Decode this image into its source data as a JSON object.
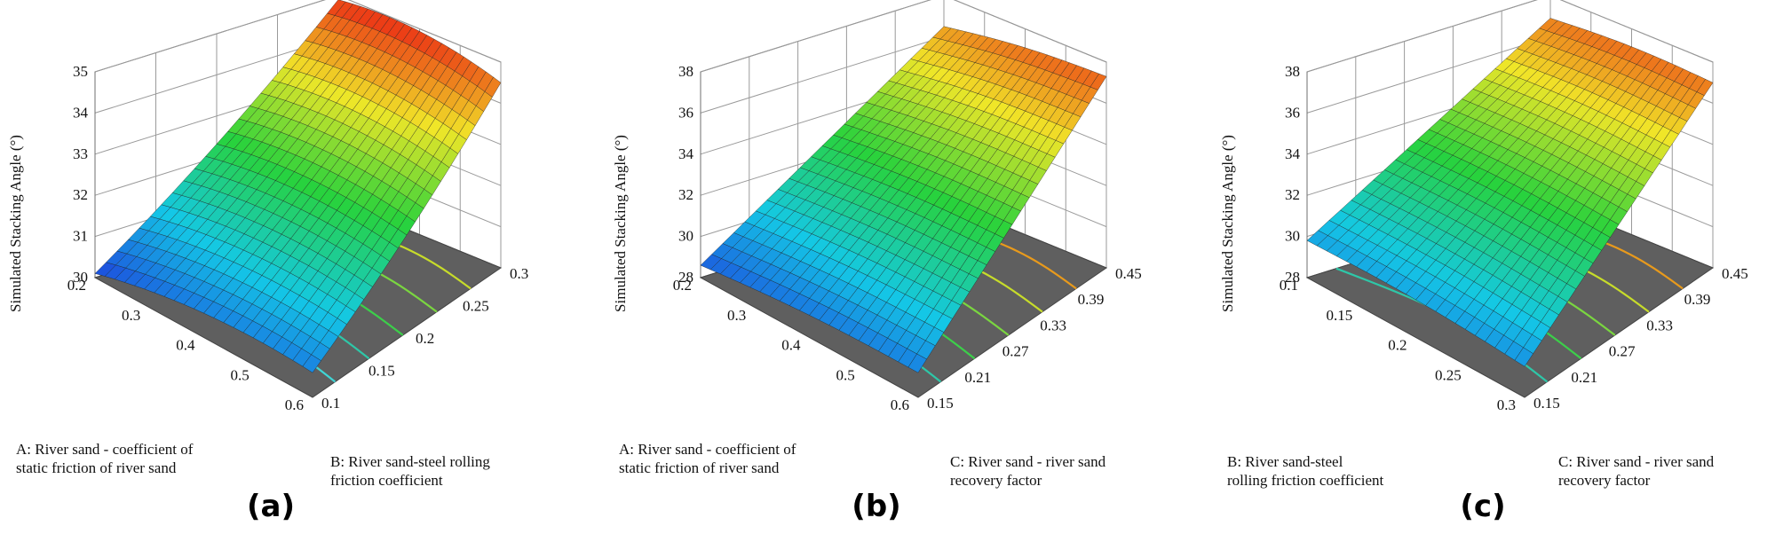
{
  "chart_data": [
    {
      "panel_label": "(a)",
      "type": "surface3d",
      "zlabel": "Simulated Stacking Angle (°)",
      "zticks": [
        "30",
        "31",
        "32",
        "33",
        "34",
        "35"
      ],
      "zlim": [
        30,
        35
      ],
      "x_axis": {
        "label": "A: River sand - coefficient of static friction of river sand",
        "label_lines": [
          "A: River sand - coefficient of",
          "static friction of river sand"
        ],
        "ticks": [
          "0.2",
          "0.3",
          "0.4",
          "0.5",
          "0.6"
        ],
        "range": [
          0.2,
          0.6
        ]
      },
      "y_axis": {
        "label": "B: River sand-steel rolling friction coefficient",
        "label_lines": [
          "B: River sand-steel rolling",
          "friction coefficient"
        ],
        "ticks": [
          "0.1",
          "0.15",
          "0.2",
          "0.25",
          "0.3"
        ],
        "range": [
          0.1,
          0.3
        ]
      },
      "surface_corners": {
        "x_min_y_min": 30.1,
        "x_min_y_max": 34.9,
        "x_max_y_min": 30.6,
        "x_max_y_max": 34.5
      },
      "colormap": "blue-cyan-green-yellow-red (z-scaled)",
      "floor_color": "#5f5f5f"
    },
    {
      "panel_label": "(b)",
      "type": "surface3d",
      "zlabel": "Simulated Stacking Angle (°)",
      "zticks": [
        "28",
        "30",
        "32",
        "34",
        "36",
        "38"
      ],
      "zlim": [
        28,
        38
      ],
      "x_axis": {
        "label": "A: River sand - coefficient of static friction of river sand",
        "label_lines": [
          "A: River sand - coefficient of",
          "static friction of river sand"
        ],
        "ticks": [
          "0.2",
          "0.3",
          "0.4",
          "0.5",
          "0.6"
        ],
        "range": [
          0.2,
          0.6
        ]
      },
      "y_axis": {
        "label": "C: River sand - river sand recovery factor",
        "label_lines": [
          "C: River sand - river sand",
          "recovery factor"
        ],
        "ticks": [
          "0.15",
          "0.21",
          "0.27",
          "0.33",
          "0.39",
          "0.45"
        ],
        "range": [
          0.15,
          0.45
        ]
      },
      "surface_corners": {
        "x_min_y_min": 28.6,
        "x_min_y_max": 36.5,
        "x_max_y_min": 29.2,
        "x_max_y_max": 37.3
      },
      "colormap": "blue-cyan-green-yellow-red (z-scaled)",
      "floor_color": "#5f5f5f"
    },
    {
      "panel_label": "(c)",
      "type": "surface3d",
      "zlabel": "Simulated Stacking Angle (°)",
      "zticks": [
        "28",
        "30",
        "32",
        "34",
        "36",
        "38"
      ],
      "zlim": [
        28,
        38
      ],
      "x_axis": {
        "label": "B: River sand-steel rolling friction coefficient",
        "label_lines": [
          "B: River sand-steel",
          "rolling friction coefficient"
        ],
        "ticks": [
          "0.1",
          "0.15",
          "0.2",
          "0.25",
          "0.3"
        ],
        "range": [
          0.1,
          0.3
        ]
      },
      "y_axis": {
        "label": "C: River sand - river sand recovery factor",
        "label_lines": [
          "C: River sand - river sand",
          "recovery factor"
        ],
        "ticks": [
          "0.15",
          "0.21",
          "0.27",
          "0.33",
          "0.39",
          "0.45"
        ],
        "range": [
          0.15,
          0.45
        ]
      },
      "surface_corners": {
        "x_min_y_min": 29.8,
        "x_min_y_max": 36.9,
        "x_max_y_min": 29.5,
        "x_max_y_max": 37.0
      },
      "colormap": "blue-cyan-green-yellow-red (z-scaled)",
      "floor_color": "#5f5f5f"
    }
  ]
}
